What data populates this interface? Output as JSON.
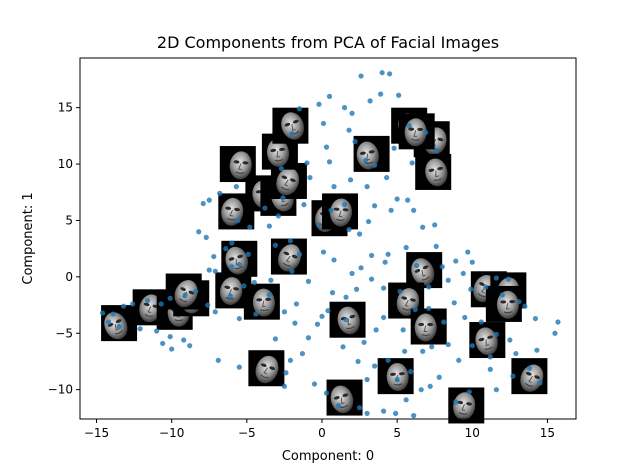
{
  "chart_data": {
    "type": "scatter",
    "title": "2D Components from PCA of Facial Images",
    "xlabel": "Component: 0",
    "ylabel": "Component: 1",
    "xlim": [
      -16.1,
      16.9
    ],
    "ylim": [
      -12.6,
      19.4
    ],
    "xticks": [
      -15,
      -10,
      -5,
      0,
      5,
      10,
      15
    ],
    "yticks": [
      -10,
      -5,
      0,
      5,
      10,
      15
    ],
    "grid": false,
    "point_color": "#1f77b4",
    "points": [
      [
        4.0,
        18.1
      ],
      [
        4.5,
        18.0
      ],
      [
        2.6,
        17.8
      ],
      [
        0.5,
        16.0
      ],
      [
        -0.2,
        15.3
      ],
      [
        3.9,
        16.2
      ],
      [
        5.1,
        16.1
      ],
      [
        -1.5,
        14.9
      ],
      [
        1.5,
        15.0
      ],
      [
        0.1,
        13.6
      ],
      [
        -2.0,
        12.7
      ],
      [
        1.8,
        13.0
      ],
      [
        2.2,
        12.0
      ],
      [
        0.3,
        11.5
      ],
      [
        -1.0,
        10.1
      ],
      [
        2.9,
        10.3
      ],
      [
        3.5,
        9.9
      ],
      [
        4.3,
        8.8
      ],
      [
        1.9,
        8.6
      ],
      [
        0.8,
        8.0
      ],
      [
        -0.8,
        8.8
      ],
      [
        -2.7,
        9.6
      ],
      [
        -5.7,
        8.0
      ],
      [
        -6.8,
        7.4
      ],
      [
        -7.5,
        6.8
      ],
      [
        -7.9,
        6.5
      ],
      [
        -8.2,
        4.0
      ],
      [
        -7.7,
        3.5
      ],
      [
        -6.4,
        2.5
      ],
      [
        -4.9,
        2.0
      ],
      [
        -7.2,
        1.8
      ],
      [
        -7.5,
        0.6
      ],
      [
        -7.1,
        0.5
      ],
      [
        -6.0,
        0.9
      ],
      [
        -5.5,
        1.1
      ],
      [
        -3.1,
        2.8
      ],
      [
        -2.1,
        3.2
      ],
      [
        -1.5,
        2.0
      ],
      [
        0.1,
        2.2
      ],
      [
        2.5,
        3.8
      ],
      [
        3.1,
        4.9
      ],
      [
        3.5,
        6.3
      ],
      [
        5.0,
        6.9
      ],
      [
        4.6,
        5.9
      ],
      [
        5.7,
        6.8
      ],
      [
        6.1,
        5.9
      ],
      [
        6.7,
        4.4
      ],
      [
        7.5,
        4.6
      ],
      [
        7.6,
        2.7
      ],
      [
        8.0,
        0.9
      ],
      [
        8.9,
        1.4
      ],
      [
        8.4,
        -0.3
      ],
      [
        9.4,
        0.3
      ],
      [
        9.7,
        2.2
      ],
      [
        10.0,
        1.3
      ],
      [
        9.9,
        -1.1
      ],
      [
        10.9,
        -0.9
      ],
      [
        11.6,
        -0.1
      ],
      [
        12.0,
        -1.6
      ],
      [
        12.4,
        -0.2
      ],
      [
        13.1,
        -2.2
      ],
      [
        13.5,
        -2.6
      ],
      [
        14.2,
        -3.7
      ],
      [
        15.7,
        -4.0
      ],
      [
        15.5,
        -5.0
      ],
      [
        14.3,
        -6.5
      ],
      [
        12.5,
        -5.6
      ],
      [
        11.2,
        -7.1
      ],
      [
        11.2,
        -8.2
      ],
      [
        12.7,
        -8.8
      ],
      [
        11.6,
        -10.0
      ],
      [
        9.8,
        -10.2
      ],
      [
        8.9,
        -11.1
      ],
      [
        6.6,
        -10.0
      ],
      [
        5.9,
        -8.4
      ],
      [
        6.7,
        -6.6
      ],
      [
        7.3,
        -6.2
      ],
      [
        8.4,
        -6.0
      ],
      [
        8.1,
        -4.0
      ],
      [
        7.1,
        -2.8
      ],
      [
        6.2,
        -2.9
      ],
      [
        5.2,
        -1.3
      ],
      [
        4.1,
        -1.0
      ],
      [
        3.3,
        -0.2
      ],
      [
        2.6,
        0.8
      ],
      [
        2.3,
        -1.1
      ],
      [
        1.6,
        -1.8
      ],
      [
        0.7,
        -1.4
      ],
      [
        0.4,
        -3.0
      ],
      [
        0.0,
        -3.5
      ],
      [
        -0.3,
        -4.2
      ],
      [
        -0.9,
        -5.4
      ],
      [
        -1.3,
        -6.8
      ],
      [
        -2.1,
        -7.4
      ],
      [
        -2.4,
        -8.5
      ],
      [
        -2.5,
        -9.7
      ],
      [
        -0.5,
        -9.5
      ],
      [
        0.3,
        -10.3
      ],
      [
        1.1,
        -11.4
      ],
      [
        2.5,
        -11.6
      ],
      [
        3.0,
        -12.1
      ],
      [
        4.1,
        -11.9
      ],
      [
        4.9,
        -12.1
      ],
      [
        6.1,
        -12.3
      ],
      [
        5.6,
        -10.9
      ],
      [
        5.0,
        -9.1
      ],
      [
        3.0,
        -9.1
      ],
      [
        2.4,
        -7.5
      ],
      [
        1.4,
        -6.2
      ],
      [
        2.8,
        -5.8
      ],
      [
        3.6,
        -4.7
      ],
      [
        4.1,
        -3.6
      ],
      [
        5.4,
        -4.7
      ],
      [
        5.5,
        -6.6
      ],
      [
        4.4,
        -7.4
      ],
      [
        3.5,
        -7.9
      ],
      [
        -3.5,
        -1.6
      ],
      [
        -4.4,
        -3.3
      ],
      [
        -5.5,
        -3.7
      ],
      [
        -7.1,
        -3.1
      ],
      [
        -7.6,
        -2.5
      ],
      [
        -8.4,
        -1.3
      ],
      [
        -9.1,
        -1.6
      ],
      [
        -10.1,
        -1.9
      ],
      [
        -10.7,
        -2.4
      ],
      [
        -11.6,
        -2.1
      ],
      [
        -12.6,
        -2.4
      ],
      [
        -13.2,
        -2.6
      ],
      [
        -13.9,
        -3.3
      ],
      [
        -14.6,
        -3.2
      ],
      [
        -14.2,
        -4.0
      ],
      [
        -13.5,
        -4.4
      ],
      [
        -12.1,
        -4.6
      ],
      [
        -11.0,
        -4.8
      ],
      [
        -10.1,
        -5.3
      ],
      [
        -9.2,
        -5.6
      ],
      [
        -8.8,
        -6.1
      ],
      [
        -10.0,
        -6.4
      ],
      [
        -10.6,
        -5.9
      ],
      [
        -6.9,
        -7.4
      ],
      [
        -5.5,
        -8.0
      ],
      [
        -6.1,
        -1.7
      ],
      [
        -5.2,
        -0.8
      ],
      [
        -4.5,
        -0.5
      ],
      [
        -3.4,
        -0.3
      ],
      [
        -2.0,
        0.5
      ],
      [
        -0.9,
        -0.4
      ],
      [
        -1.7,
        -2.4
      ],
      [
        -2.5,
        -3.1
      ],
      [
        -1.8,
        -4.1
      ],
      [
        -3.1,
        -5.5
      ],
      [
        -0.2,
        4.6
      ],
      [
        0.6,
        5.9
      ],
      [
        1.5,
        6.4
      ],
      [
        3.3,
        1.9
      ],
      [
        4.4,
        2.0
      ],
      [
        5.6,
        2.6
      ],
      [
        6.3,
        1.0
      ],
      [
        7.1,
        -0.9
      ],
      [
        8.8,
        -2.3
      ],
      [
        9.5,
        -3.6
      ],
      [
        10.6,
        -4.0
      ],
      [
        11.6,
        -5.1
      ],
      [
        12.9,
        -6.8
      ],
      [
        13.8,
        -8.1
      ],
      [
        14.5,
        -9.4
      ],
      [
        10.0,
        -6.1
      ],
      [
        9.1,
        -7.4
      ],
      [
        7.8,
        -8.9
      ],
      [
        7.2,
        -9.7
      ],
      [
        1.6,
        -3.8
      ],
      [
        2.0,
        0.3
      ],
      [
        0.8,
        1.5
      ],
      [
        -2.9,
        5.4
      ],
      [
        -3.8,
        6.1
      ],
      [
        -4.8,
        4.4
      ],
      [
        -5.6,
        5.0
      ],
      [
        -6.0,
        3.0
      ],
      [
        -3.5,
        4.5
      ],
      [
        -2.6,
        7.0
      ],
      [
        -1.2,
        6.4
      ],
      [
        0.5,
        10.2
      ],
      [
        2.0,
        14.5
      ],
      [
        3.2,
        15.6
      ],
      [
        5.8,
        13.4
      ],
      [
        6.9,
        12.8
      ],
      [
        7.6,
        11.2
      ],
      [
        6.0,
        10.1
      ],
      [
        4.8,
        11.4
      ],
      [
        3.0,
        8.0
      ],
      [
        1.8,
        4.2
      ],
      [
        4.2,
        1.3
      ]
    ],
    "thumbnails": [
      [
        -13.5,
        -4.1
      ],
      [
        -11.4,
        -2.7
      ],
      [
        -9.8,
        -3.1
      ],
      [
        -8.7,
        -1.9
      ],
      [
        -9.2,
        -1.3
      ],
      [
        -5.9,
        -1.2
      ],
      [
        -4.0,
        -2.2
      ],
      [
        -5.5,
        1.6
      ],
      [
        -2.2,
        1.8
      ],
      [
        -5.7,
        5.8
      ],
      [
        -3.9,
        7.4
      ],
      [
        -2.9,
        7.0
      ],
      [
        -2.2,
        8.5
      ],
      [
        -5.6,
        10.0
      ],
      [
        -2.8,
        11.1
      ],
      [
        -2.1,
        13.4
      ],
      [
        0.5,
        5.2
      ],
      [
        1.2,
        5.8
      ],
      [
        3.3,
        10.9
      ],
      [
        5.8,
        13.4
      ],
      [
        7.3,
        12.2
      ],
      [
        6.3,
        12.9
      ],
      [
        7.4,
        9.3
      ],
      [
        6.8,
        0.6
      ],
      [
        5.6,
        -2.1
      ],
      [
        7.1,
        -4.4
      ],
      [
        1.7,
        -3.8
      ],
      [
        11.1,
        -1.1
      ],
      [
        12.4,
        -1.2
      ],
      [
        12.1,
        -2.4
      ],
      [
        11.0,
        -5.6
      ],
      [
        13.8,
        -8.8
      ],
      [
        9.6,
        -11.4
      ],
      [
        4.9,
        -8.8
      ],
      [
        1.5,
        -10.7
      ],
      [
        -3.7,
        -8.1
      ]
    ]
  }
}
